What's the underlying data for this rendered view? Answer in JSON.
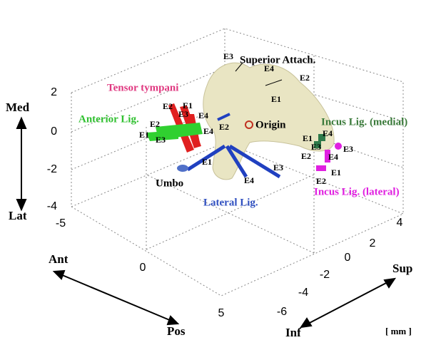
{
  "axes": {
    "vertical": {
      "ticks": [
        "2",
        "0",
        "-2",
        "-4"
      ],
      "positive": "Med",
      "negative": "Lat"
    },
    "ant_pos": {
      "ticks": [
        "-5",
        "0",
        "5"
      ],
      "negative": "Ant",
      "positive": "Pos"
    },
    "inf_sup": {
      "ticks": [
        "4",
        "2",
        "0",
        "-2",
        "-4",
        "-6"
      ],
      "positive": "Sup",
      "negative": "Inf"
    },
    "unit": "[ mm ]"
  },
  "structures": [
    {
      "name": "Superior Attach.",
      "points": [
        "E3",
        "E4",
        "E2",
        "E1"
      ]
    },
    {
      "name": "Tensor tympani",
      "points": [
        "E2",
        "E1",
        "E3",
        "E4"
      ]
    },
    {
      "name": "Anterior Lig.",
      "points": [
        "E2",
        "E1",
        "E3",
        "E4"
      ]
    },
    {
      "name": "Lateral Lig.",
      "points": [
        "E2",
        "E1",
        "E4",
        "E3"
      ]
    },
    {
      "name": "Incus Lig. (medial)",
      "points": [
        "E1",
        "E4",
        "E3",
        "E2"
      ]
    },
    {
      "name": "Incus Lig. (lateral)",
      "points": [
        "E3",
        "E4",
        "E2",
        "E1"
      ]
    }
  ],
  "origin": "Origin",
  "umbo": "Umbo"
}
